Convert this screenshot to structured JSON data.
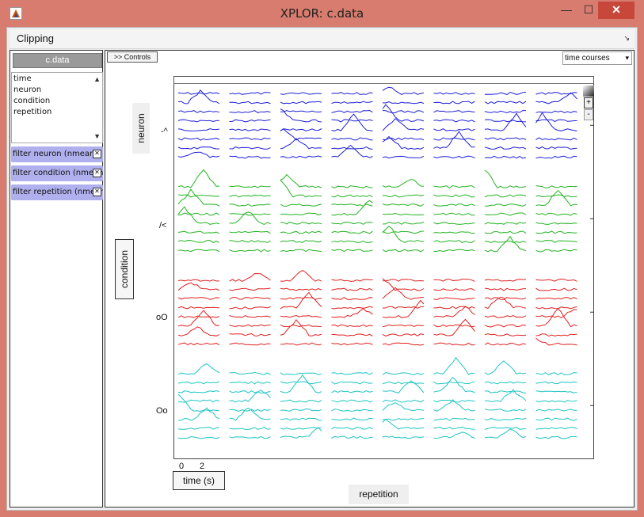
{
  "window": {
    "title": "XPLOR: c.data",
    "minimize_icon": "minimize-icon",
    "maximize_icon": "maximize-icon",
    "close_icon": "close-icon",
    "minimize_glyph": "—",
    "maximize_glyph": "☐",
    "close_glyph": "✕"
  },
  "menu": {
    "clipping_label": "Clipping",
    "arrow_glyph": "↘"
  },
  "leftpanel": {
    "data_button": "c.data",
    "list_items": [
      "time",
      "neuron",
      "condition",
      "repetition"
    ],
    "scroll_up_glyph": "▲",
    "scroll_down_glyph": "▼",
    "filters": [
      "filter neuron (nmean)",
      "filter condition (nmean)",
      "filter repetition (nmean)"
    ],
    "filter_close_glyph": "✕"
  },
  "main": {
    "controls_button": ">> Controls",
    "display_select_value": "time courses",
    "select_arrow_glyph": "▾",
    "neuron_axis_label": "neuron",
    "condition_axis_label": "condition",
    "condition_ticks": [
      "-^",
      "/<",
      "oO",
      "Oo"
    ],
    "time_ticks": [
      "0",
      "2"
    ],
    "time_axis_label": "time (s)",
    "repetition_axis_label": "repetition",
    "zoom_in_glyph": "+",
    "zoom_out_glyph": "-"
  },
  "chart_data": {
    "type": "line",
    "layout": "small-multiples grid of time courses",
    "rows": [
      "-^",
      "/<",
      "oO",
      "Oo"
    ],
    "columns": 8,
    "lines_per_cell": 8,
    "row_colors": [
      "#1f1fd8",
      "#22b422",
      "#e02020",
      "#1fc4c4"
    ],
    "xlabel": "time (s)",
    "x_ticks": [
      0,
      2
    ],
    "row_axis_label": "condition",
    "column_axis_label": "repetition",
    "line_axis_label": "neuron"
  }
}
